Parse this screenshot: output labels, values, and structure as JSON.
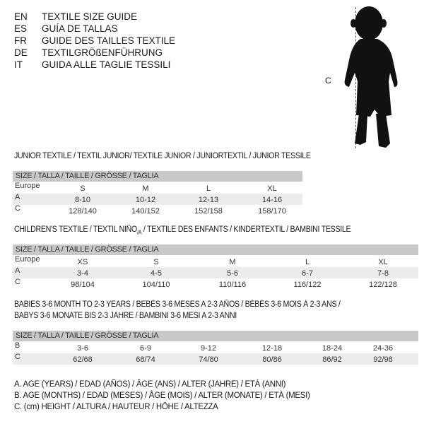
{
  "header": [
    {
      "code": "EN",
      "text": "TEXTILE SIZE GUIDE"
    },
    {
      "code": "ES",
      "text": "GUÍA DE TALLAS"
    },
    {
      "code": "FR",
      "text": "GUIDE DES TAILLES TEXTILE"
    },
    {
      "code": "DE",
      "text": "TEXTILGRÖßENFÜHRUNG"
    },
    {
      "code": "IT",
      "text": "GUIDA ALLE TAGLIE TESSILI"
    }
  ],
  "figure": {
    "label": "C",
    "icon": "child-silhouette"
  },
  "junior": {
    "title": "JUNIOR TEXTILE / TEXTIL JUNIOR/ TEXTILE JUNIOR / JUNIORTEXTIL / JUNIOR TESSILE",
    "bar": "SIZE / TALLA / TAILLE / GRÖSSE / TAGLIA",
    "rows": [
      {
        "label": "Europe",
        "cells": [
          "S",
          "M",
          "L",
          "XL"
        ]
      },
      {
        "label": "A",
        "cells": [
          "8-10",
          "10-12",
          "12-13",
          "14-16"
        ]
      },
      {
        "label": "C",
        "cells": [
          "128/140",
          "140/152",
          "152/158",
          "158/170"
        ]
      }
    ]
  },
  "children": {
    "title_a": "CHILDREN'S TEXTILE / TEXTIL NIÑO",
    "title_sub": "/A",
    "title_b": " / TEXTILE DES ENFANTS / KINDERTEXTIL / BAMBINI TESSILE",
    "bar": "SIZE / TALLA / TAILLE / GRÖSSE / TAGLIA",
    "rows": [
      {
        "label": "Europe",
        "cells": [
          "XS",
          "S",
          "M",
          "L",
          "XL"
        ]
      },
      {
        "label": "A",
        "cells": [
          "3-4",
          "4-5",
          "5-6",
          "6-7",
          "7-8"
        ]
      },
      {
        "label": "C",
        "cells": [
          "98/104",
          "104/110",
          "110/116",
          "116/122",
          "122/128"
        ]
      }
    ]
  },
  "babies": {
    "title_line1": "BABIES 3-6 MONTH TO 2-3 YEARS / BEBÉS 3-6 MESES A 2-3 AÑOS / BÉBÉS 3-6 MOIS À 2-3 ANS /",
    "title_line2": "BABYS 3-6 MONATE BIS 2-3 JAHRE / BAMBINI 3-6 MESI A 2-3 ANNI",
    "bar": "SIZE / TALLA / TAILLE / GRÖSSE / TAGLIA",
    "rows": [
      {
        "label": "B",
        "cells": [
          "3-6",
          "6-9",
          "9-12",
          "12-18",
          "18-24",
          "24-36"
        ]
      },
      {
        "label": "C",
        "cells": [
          "62/68",
          "68/74",
          "74/80",
          "80/86",
          "86/92",
          "92/98"
        ]
      }
    ]
  },
  "legend": [
    "A. AGE (YEARS) / EDAD (AÑOS) / ÂGE (ANS) / ALTER (JAHRE) / ETÀ (ANNI)",
    "B. AGE (MONTHS) / EDAD (MESES) / ÂGE (MOIS) / ALTER (MONATE) / ETÀ (MESI)",
    "C. (cm) HEIGHT / ALTURA / HAUTEUR / HÖHE / ALTEZZA"
  ]
}
